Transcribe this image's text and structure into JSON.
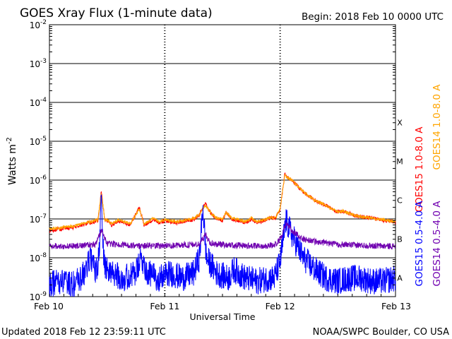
{
  "chart_data": {
    "type": "line",
    "title": "GOES Xray Flux (1-minute data)",
    "begin_label": "Begin:  2018 Feb 10 0000 UTC",
    "xlabel": "Universal Time",
    "ylabel_base": "Watts m",
    "ylabel_exp": "-2",
    "x_range_days": [
      0,
      3
    ],
    "x_ticks": [
      {
        "day": 0,
        "label": "Feb 10"
      },
      {
        "day": 1,
        "label": "Feb 11"
      },
      {
        "day": 2,
        "label": "Feb 12"
      },
      {
        "day": 3,
        "label": "Feb 13"
      }
    ],
    "ylim_log10": [
      -9,
      -2
    ],
    "y_ticks": [
      {
        "exp": -2,
        "base": "10",
        "sup": "-2"
      },
      {
        "exp": -3,
        "base": "10",
        "sup": "-3"
      },
      {
        "exp": -4,
        "base": "10",
        "sup": "-4"
      },
      {
        "exp": -5,
        "base": "10",
        "sup": "-5"
      },
      {
        "exp": -6,
        "base": "10",
        "sup": "-6"
      },
      {
        "exp": -7,
        "base": "10",
        "sup": "-7"
      },
      {
        "exp": -8,
        "base": "10",
        "sup": "-8"
      },
      {
        "exp": -9,
        "base": "10",
        "sup": "-9"
      }
    ],
    "flare_classes": [
      {
        "label": "X",
        "exp": -4
      },
      {
        "label": "M",
        "exp": -5
      },
      {
        "label": "C",
        "exp": -6
      },
      {
        "label": "B",
        "exp": -7
      },
      {
        "label": "A",
        "exp": -8
      }
    ],
    "series": [
      {
        "name": "GOES15 1.0-8.0 A",
        "color": "#ff0000",
        "x": [
          0,
          0.1,
          0.2,
          0.28,
          0.36,
          0.42,
          0.45,
          0.48,
          0.5,
          0.54,
          0.6,
          0.7,
          0.78,
          0.82,
          0.86,
          0.9,
          0.95,
          1.0,
          1.1,
          1.2,
          1.26,
          1.3,
          1.35,
          1.4,
          1.45,
          1.5,
          1.53,
          1.58,
          1.64,
          1.7,
          1.75,
          1.8,
          1.86,
          1.92,
          1.96,
          2.0,
          2.04,
          2.1,
          2.2,
          2.3,
          2.4,
          2.45,
          2.5,
          2.55,
          2.65,
          2.75,
          2.85,
          2.9,
          2.95,
          3.0
        ],
        "values": [
          5e-08,
          5.5e-08,
          6e-08,
          7e-08,
          8e-08,
          9e-08,
          5e-07,
          9e-08,
          9e-08,
          7e-08,
          9e-08,
          7e-08,
          2e-07,
          7e-08,
          8e-08,
          1e-07,
          8e-08,
          9e-08,
          8e-08,
          9e-08,
          1e-07,
          1.3e-07,
          2.5e-07,
          1.4e-07,
          1e-07,
          9e-08,
          1.5e-07,
          1e-07,
          9e-08,
          8e-08,
          1e-07,
          8e-08,
          9e-08,
          1.1e-07,
          1e-07,
          1.8e-07,
          1.4e-06,
          1e-06,
          5e-07,
          3e-07,
          2.2e-07,
          1.8e-07,
          1.5e-07,
          1.6e-07,
          1.2e-07,
          1.1e-07,
          1e-07,
          9e-08,
          9e-08,
          8e-08
        ]
      },
      {
        "name": "GOES14 1.0-8.0 A",
        "color": "#ffa500",
        "x": [
          0,
          0.1,
          0.2,
          0.28,
          0.36,
          0.42,
          0.45,
          0.48,
          0.5,
          0.54,
          0.6,
          0.7,
          0.78,
          0.82,
          0.86,
          0.9,
          0.95,
          1.0,
          1.1,
          1.2,
          1.26,
          1.3,
          1.35,
          1.4,
          1.45,
          1.5,
          1.53,
          1.58,
          1.64,
          1.7,
          1.75,
          1.8,
          1.86,
          1.92,
          1.96,
          2.0,
          2.04,
          2.1,
          2.2,
          2.3,
          2.4,
          2.45,
          2.5,
          2.55,
          2.65,
          2.75,
          2.85,
          2.9,
          2.95,
          3.0
        ],
        "values": [
          5.5e-08,
          6e-08,
          6.5e-08,
          7.5e-08,
          8.5e-08,
          9.5e-08,
          4.5e-07,
          9.5e-08,
          9.5e-08,
          7.5e-08,
          9.5e-08,
          7.5e-08,
          1.8e-07,
          7.5e-08,
          8.5e-08,
          1.05e-07,
          8.5e-08,
          9.5e-08,
          8.5e-08,
          9.5e-08,
          1.05e-07,
          1.3e-07,
          2.3e-07,
          1.4e-07,
          1.05e-07,
          9.5e-08,
          1.5e-07,
          1.05e-07,
          9.5e-08,
          8.5e-08,
          1.05e-07,
          8.5e-08,
          9.5e-08,
          1.1e-07,
          1.05e-07,
          1.8e-07,
          1.3e-06,
          1e-06,
          5e-07,
          3e-07,
          2.2e-07,
          1.8e-07,
          1.5e-07,
          1.6e-07,
          1.2e-07,
          1.1e-07,
          1e-07,
          9.5e-08,
          9e-08,
          8.5e-08
        ]
      },
      {
        "name": "GOES15 0.5-4.0 A",
        "color": "#0000ff",
        "x": [
          0,
          0.1,
          0.2,
          0.28,
          0.36,
          0.4,
          0.43,
          0.45,
          0.47,
          0.5,
          0.55,
          0.65,
          0.75,
          0.8,
          0.85,
          0.95,
          1.05,
          1.15,
          1.25,
          1.3,
          1.33,
          1.36,
          1.45,
          1.55,
          1.6,
          1.7,
          1.8,
          1.9,
          1.95,
          2.0,
          2.05,
          2.1,
          2.2,
          2.3,
          2.4,
          2.5,
          2.6,
          2.7,
          2.8,
          2.9,
          3.0
        ],
        "values": [
          2e-09,
          2.5e-09,
          2e-09,
          3e-09,
          1e-08,
          4e-09,
          1e-08,
          4e-07,
          8e-09,
          5e-09,
          4e-09,
          3e-09,
          4e-09,
          1e-08,
          4e-09,
          3e-09,
          4e-09,
          3e-09,
          4e-09,
          1e-08,
          2e-07,
          1e-08,
          4e-09,
          3e-09,
          5e-09,
          3e-09,
          2.5e-09,
          3e-09,
          3e-09,
          8e-09,
          9e-08,
          4e-08,
          1e-08,
          5e-09,
          3e-09,
          2.5e-09,
          3e-09,
          3e-09,
          2.5e-09,
          2.5e-09,
          3e-09
        ]
      },
      {
        "name": "GOES14 0.5-4.0 A",
        "color": "#7000b0",
        "x": [
          0,
          0.2,
          0.4,
          0.45,
          0.5,
          0.7,
          0.9,
          1.1,
          1.3,
          1.35,
          1.4,
          1.6,
          1.8,
          1.95,
          2.0,
          2.05,
          2.1,
          2.2,
          2.35,
          2.5,
          2.7,
          2.9,
          3.0
        ],
        "values": [
          2e-08,
          2e-08,
          2.2e-08,
          5e-08,
          2.3e-08,
          2.1e-08,
          2e-08,
          2.1e-08,
          2.2e-08,
          4e-08,
          2.3e-08,
          2.1e-08,
          2e-08,
          2.1e-08,
          3e-08,
          8e-08,
          5e-08,
          3e-08,
          2.5e-08,
          2.2e-08,
          2.1e-08,
          2e-08,
          2e-08
        ]
      }
    ]
  },
  "footer": {
    "updated": "Updated 2018 Feb 12 23:59:11 UTC",
    "credit": "NOAA/SWPC Boulder, CO USA"
  }
}
